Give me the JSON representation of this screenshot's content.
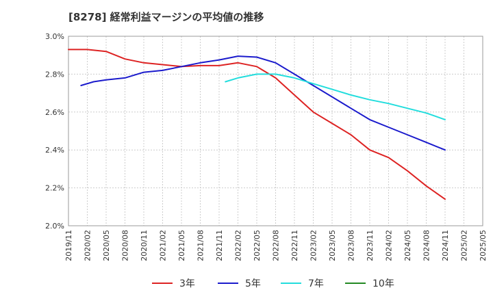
{
  "chart_data": {
    "type": "line",
    "title": "[8278]  経常利益マージンの平均値の推移",
    "xlabel": "",
    "ylabel": "",
    "x_tick_labels": [
      "2019/11",
      "2020/02",
      "2020/05",
      "2020/08",
      "2020/11",
      "2021/02",
      "2021/05",
      "2021/08",
      "2021/11",
      "2022/02",
      "2022/05",
      "2022/08",
      "2022/11",
      "2023/02",
      "2023/05",
      "2023/08",
      "2023/11",
      "2024/02",
      "2024/05",
      "2024/08",
      "2024/11",
      "2025/02",
      "2025/05"
    ],
    "y_tick_labels": [
      "3.0%",
      "2.8%",
      "2.6%",
      "2.4%",
      "2.2%",
      "2.0%"
    ],
    "ylim": [
      2.0,
      3.0
    ],
    "grid": true,
    "legend_position": "bottom",
    "series": [
      {
        "name": "3年",
        "color": "#dd2222",
        "points": [
          [
            "2019/11",
            2.93
          ],
          [
            "2020/02",
            2.93
          ],
          [
            "2020/05",
            2.92
          ],
          [
            "2020/08",
            2.88
          ],
          [
            "2020/11",
            2.86
          ],
          [
            "2021/02",
            2.85
          ],
          [
            "2021/05",
            2.84
          ],
          [
            "2021/08",
            2.845
          ],
          [
            "2021/11",
            2.845
          ],
          [
            "2022/02",
            2.86
          ],
          [
            "2022/05",
            2.84
          ],
          [
            "2022/08",
            2.78
          ],
          [
            "2022/11",
            2.69
          ],
          [
            "2023/02",
            2.6
          ],
          [
            "2023/05",
            2.54
          ],
          [
            "2023/08",
            2.48
          ],
          [
            "2023/11",
            2.4
          ],
          [
            "2024/02",
            2.36
          ],
          [
            "2024/05",
            2.29
          ],
          [
            "2024/08",
            2.21
          ],
          [
            "2024/11",
            2.14
          ]
        ]
      },
      {
        "name": "5年",
        "color": "#1a1acc",
        "points": [
          [
            "2020/01",
            2.74
          ],
          [
            "2020/03",
            2.76
          ],
          [
            "2020/05",
            2.77
          ],
          [
            "2020/08",
            2.78
          ],
          [
            "2020/11",
            2.81
          ],
          [
            "2021/02",
            2.82
          ],
          [
            "2021/05",
            2.84
          ],
          [
            "2021/08",
            2.86
          ],
          [
            "2021/11",
            2.875
          ],
          [
            "2022/02",
            2.895
          ],
          [
            "2022/05",
            2.89
          ],
          [
            "2022/08",
            2.86
          ],
          [
            "2022/11",
            2.8
          ],
          [
            "2023/02",
            2.74
          ],
          [
            "2023/05",
            2.68
          ],
          [
            "2023/08",
            2.62
          ],
          [
            "2023/11",
            2.56
          ],
          [
            "2024/02",
            2.52
          ],
          [
            "2024/05",
            2.48
          ],
          [
            "2024/08",
            2.44
          ],
          [
            "2024/11",
            2.4
          ]
        ]
      },
      {
        "name": "7年",
        "color": "#22dddd",
        "points": [
          [
            "2021/12",
            2.76
          ],
          [
            "2022/02",
            2.78
          ],
          [
            "2022/05",
            2.8
          ],
          [
            "2022/08",
            2.8
          ],
          [
            "2022/11",
            2.78
          ],
          [
            "2023/02",
            2.75
          ],
          [
            "2023/05",
            2.72
          ],
          [
            "2023/08",
            2.69
          ],
          [
            "2023/11",
            2.665
          ],
          [
            "2024/02",
            2.645
          ],
          [
            "2024/05",
            2.62
          ],
          [
            "2024/08",
            2.595
          ],
          [
            "2024/11",
            2.56
          ]
        ]
      },
      {
        "name": "10年",
        "color": "#228822",
        "points": []
      }
    ]
  }
}
